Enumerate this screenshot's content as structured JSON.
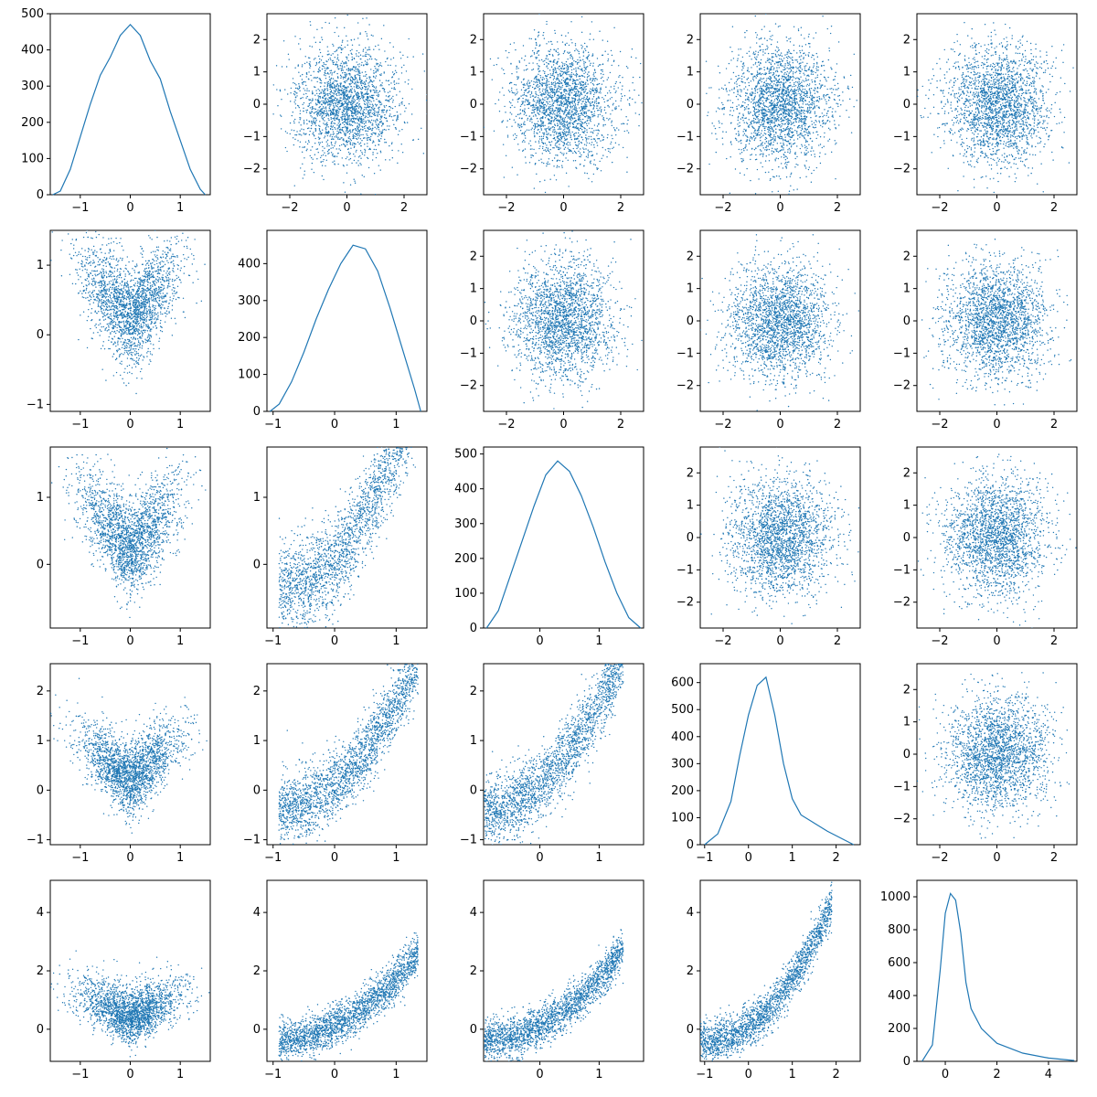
{
  "chart_data": {
    "type": "pairplot",
    "title": "",
    "color": "#1f77b4",
    "grid": false,
    "variables": [
      {
        "range": [
          -1.6,
          1.6
        ],
        "ticks": [
          -1,
          0,
          1
        ]
      },
      {
        "range": [
          -1.1,
          1.5
        ],
        "ticks": [
          -1,
          0,
          1
        ]
      },
      {
        "range": [
          -0.95,
          1.75
        ],
        "ticks": [
          0,
          1
        ]
      },
      {
        "range": [
          -1.1,
          2.55
        ],
        "ticks": [
          -1,
          0,
          1,
          2
        ]
      },
      {
        "range": [
          -1.1,
          5.1
        ],
        "ticks": [
          0,
          2,
          4
        ]
      }
    ],
    "normal_range": [
      -2.8,
      2.8
    ],
    "normal_ticks": [
      -2,
      -1,
      0,
      1,
      2
    ],
    "normal_xticks": [
      -2,
      0,
      2
    ],
    "panels": [
      {
        "row": 0,
        "col": 0,
        "type": "hist",
        "yticks": [
          0,
          100,
          200,
          300,
          400,
          500
        ],
        "ymax": 500,
        "values": [
          [
            -1.55,
            0
          ],
          [
            -1.4,
            10
          ],
          [
            -1.2,
            70
          ],
          [
            -1.0,
            160
          ],
          [
            -0.8,
            250
          ],
          [
            -0.6,
            330
          ],
          [
            -0.4,
            380
          ],
          [
            -0.2,
            440
          ],
          [
            0.0,
            470
          ],
          [
            0.2,
            440
          ],
          [
            0.4,
            370
          ],
          [
            0.6,
            320
          ],
          [
            0.8,
            230
          ],
          [
            1.0,
            150
          ],
          [
            1.2,
            70
          ],
          [
            1.4,
            15
          ],
          [
            1.5,
            0
          ]
        ]
      },
      {
        "row": 0,
        "col": 1,
        "type": "scatter",
        "shape": "normal"
      },
      {
        "row": 0,
        "col": 2,
        "type": "scatter",
        "shape": "normal"
      },
      {
        "row": 0,
        "col": 3,
        "type": "scatter",
        "shape": "normal"
      },
      {
        "row": 0,
        "col": 4,
        "type": "scatter",
        "shape": "normal"
      },
      {
        "row": 1,
        "col": 0,
        "type": "scatter",
        "shape": "v-shape"
      },
      {
        "row": 1,
        "col": 1,
        "type": "hist",
        "yticks": [
          0,
          100,
          200,
          300,
          400
        ],
        "ymax": 490,
        "values": [
          [
            -1.05,
            0
          ],
          [
            -0.9,
            20
          ],
          [
            -0.7,
            80
          ],
          [
            -0.5,
            160
          ],
          [
            -0.3,
            250
          ],
          [
            -0.1,
            330
          ],
          [
            0.1,
            400
          ],
          [
            0.3,
            450
          ],
          [
            0.5,
            440
          ],
          [
            0.7,
            380
          ],
          [
            0.9,
            280
          ],
          [
            1.1,
            170
          ],
          [
            1.3,
            60
          ],
          [
            1.4,
            0
          ]
        ]
      },
      {
        "row": 1,
        "col": 2,
        "type": "scatter",
        "shape": "normal"
      },
      {
        "row": 1,
        "col": 3,
        "type": "scatter",
        "shape": "normal"
      },
      {
        "row": 1,
        "col": 4,
        "type": "scatter",
        "shape": "normal"
      },
      {
        "row": 2,
        "col": 0,
        "type": "scatter",
        "shape": "v-shape"
      },
      {
        "row": 2,
        "col": 1,
        "type": "scatter",
        "shape": "curve"
      },
      {
        "row": 2,
        "col": 2,
        "type": "hist",
        "yticks": [
          0,
          100,
          200,
          300,
          400,
          500
        ],
        "ymax": 520,
        "values": [
          [
            -0.9,
            0
          ],
          [
            -0.7,
            50
          ],
          [
            -0.5,
            150
          ],
          [
            -0.3,
            250
          ],
          [
            -0.1,
            350
          ],
          [
            0.1,
            440
          ],
          [
            0.3,
            480
          ],
          [
            0.5,
            450
          ],
          [
            0.7,
            380
          ],
          [
            0.9,
            290
          ],
          [
            1.1,
            190
          ],
          [
            1.3,
            100
          ],
          [
            1.5,
            30
          ],
          [
            1.7,
            0
          ]
        ]
      },
      {
        "row": 2,
        "col": 3,
        "type": "scatter",
        "shape": "normal"
      },
      {
        "row": 2,
        "col": 4,
        "type": "scatter",
        "shape": "normal"
      },
      {
        "row": 3,
        "col": 0,
        "type": "scatter",
        "shape": "v-shape"
      },
      {
        "row": 3,
        "col": 1,
        "type": "scatter",
        "shape": "curve"
      },
      {
        "row": 3,
        "col": 2,
        "type": "scatter",
        "shape": "curve"
      },
      {
        "row": 3,
        "col": 3,
        "type": "hist",
        "yticks": [
          0,
          100,
          200,
          300,
          400,
          500,
          600
        ],
        "ymax": 670,
        "values": [
          [
            -1.0,
            0
          ],
          [
            -0.7,
            40
          ],
          [
            -0.4,
            160
          ],
          [
            -0.2,
            330
          ],
          [
            0.0,
            480
          ],
          [
            0.2,
            590
          ],
          [
            0.4,
            620
          ],
          [
            0.6,
            480
          ],
          [
            0.8,
            300
          ],
          [
            1.0,
            170
          ],
          [
            1.2,
            110
          ],
          [
            1.5,
            80
          ],
          [
            1.8,
            50
          ],
          [
            2.1,
            25
          ],
          [
            2.4,
            0
          ]
        ]
      },
      {
        "row": 3,
        "col": 4,
        "type": "scatter",
        "shape": "normal"
      },
      {
        "row": 4,
        "col": 0,
        "type": "scatter",
        "shape": "v-shape"
      },
      {
        "row": 4,
        "col": 1,
        "type": "scatter",
        "shape": "curve"
      },
      {
        "row": 4,
        "col": 2,
        "type": "scatter",
        "shape": "curve"
      },
      {
        "row": 4,
        "col": 3,
        "type": "scatter",
        "shape": "curve"
      },
      {
        "row": 4,
        "col": 4,
        "type": "hist",
        "yticks": [
          0,
          200,
          400,
          600,
          800,
          1000
        ],
        "ymax": 1100,
        "values": [
          [
            -0.9,
            0
          ],
          [
            -0.5,
            100
          ],
          [
            -0.2,
            550
          ],
          [
            0.0,
            900
          ],
          [
            0.2,
            1020
          ],
          [
            0.4,
            980
          ],
          [
            0.6,
            780
          ],
          [
            0.8,
            480
          ],
          [
            1.0,
            320
          ],
          [
            1.4,
            200
          ],
          [
            2.0,
            110
          ],
          [
            3.0,
            50
          ],
          [
            4.0,
            20
          ],
          [
            5.0,
            5
          ]
        ]
      }
    ]
  }
}
